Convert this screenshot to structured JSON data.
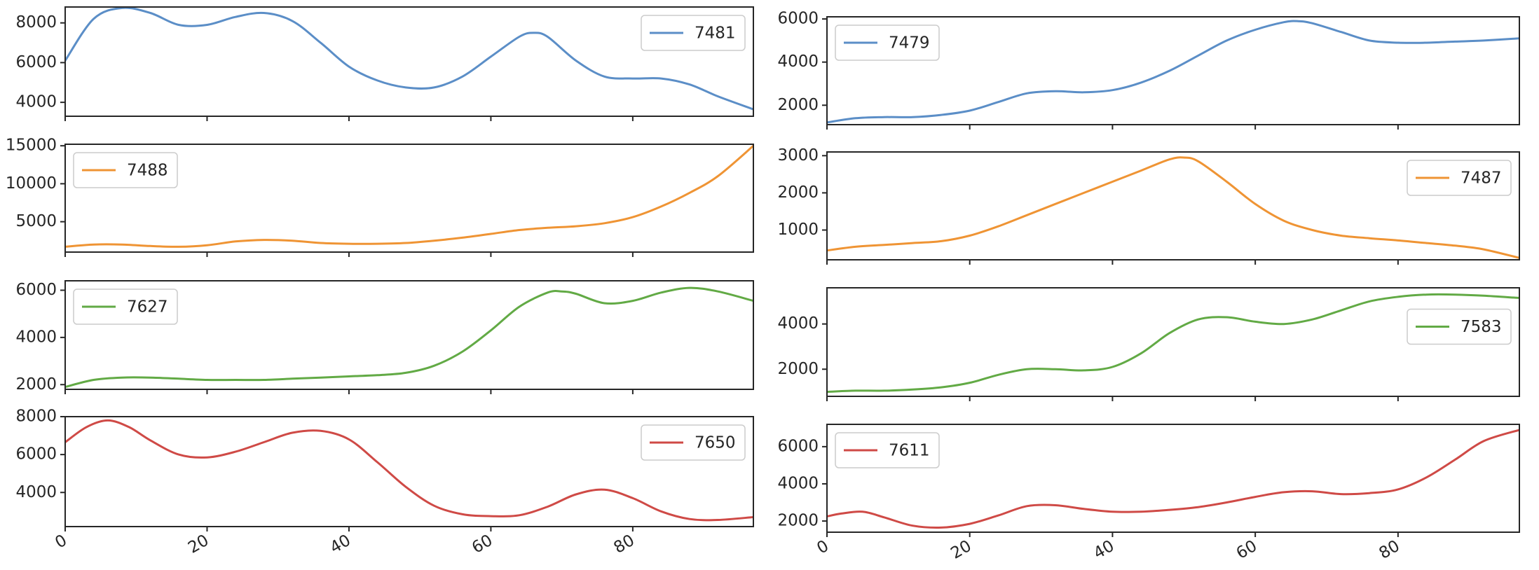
{
  "colors": {
    "blue": "#5b8ec7",
    "orange": "#ef9434",
    "green": "#62aa45",
    "red": "#cf4a46"
  },
  "chart_data": [
    {
      "type": "line",
      "name": "7481",
      "color": "blue",
      "legend": "top-right",
      "xlim": [
        0,
        97
      ],
      "ylim": [
        3300,
        8800
      ],
      "yticks": [
        4000,
        6000,
        8000
      ],
      "ytick_labels": [
        "4000",
        "6000",
        "8000"
      ],
      "x": [
        0,
        4,
        8,
        12,
        16,
        20,
        24,
        28,
        32,
        36,
        40,
        44,
        48,
        52,
        56,
        60,
        64,
        66,
        68,
        72,
        76,
        80,
        84,
        88,
        92,
        97
      ],
      "y": [
        6100,
        8200,
        8750,
        8500,
        7900,
        7900,
        8300,
        8500,
        8100,
        7000,
        5800,
        5100,
        4750,
        4750,
        5300,
        6300,
        7300,
        7500,
        7300,
        6100,
        5300,
        5200,
        5200,
        4900,
        4300,
        3650
      ]
    },
    {
      "type": "line",
      "name": "7479",
      "color": "blue",
      "legend": "top-left",
      "xlim": [
        0,
        97
      ],
      "ylim": [
        1100,
        6100
      ],
      "yticks": [
        2000,
        4000,
        6000
      ],
      "ytick_labels": [
        "2000",
        "4000",
        "6000"
      ],
      "x": [
        0,
        4,
        8,
        12,
        16,
        20,
        24,
        28,
        32,
        36,
        40,
        44,
        48,
        52,
        56,
        60,
        64,
        66,
        68,
        72,
        76,
        80,
        84,
        88,
        92,
        97
      ],
      "y": [
        1200,
        1400,
        1450,
        1450,
        1550,
        1750,
        2150,
        2550,
        2650,
        2600,
        2700,
        3050,
        3600,
        4300,
        5000,
        5500,
        5850,
        5900,
        5800,
        5400,
        5000,
        4900,
        4900,
        4950,
        5000,
        5100
      ]
    },
    {
      "type": "line",
      "name": "7488",
      "color": "orange",
      "legend": "top-left",
      "xlim": [
        0,
        97
      ],
      "ylim": [
        1000,
        15200
      ],
      "yticks": [
        5000,
        10000,
        15000
      ],
      "ytick_labels": [
        "5000",
        "10000",
        "15000"
      ],
      "x": [
        0,
        4,
        8,
        12,
        16,
        20,
        24,
        28,
        32,
        36,
        40,
        44,
        48,
        52,
        56,
        60,
        64,
        68,
        72,
        76,
        80,
        84,
        88,
        92,
        97
      ],
      "y": [
        1700,
        2000,
        2000,
        1800,
        1700,
        1900,
        2400,
        2600,
        2500,
        2200,
        2100,
        2100,
        2200,
        2500,
        2900,
        3400,
        3900,
        4200,
        4400,
        4800,
        5600,
        7000,
        8800,
        11000,
        15000
      ]
    },
    {
      "type": "line",
      "name": "7487",
      "color": "orange",
      "legend": "top-right",
      "xlim": [
        0,
        97
      ],
      "ylim": [
        200,
        3100
      ],
      "yticks": [
        1000,
        2000,
        3000
      ],
      "ytick_labels": [
        "1000",
        "2000",
        "3000"
      ],
      "x": [
        0,
        4,
        8,
        12,
        16,
        20,
        24,
        28,
        32,
        36,
        40,
        44,
        48,
        50,
        52,
        56,
        60,
        64,
        68,
        72,
        76,
        80,
        84,
        88,
        92,
        97
      ],
      "y": [
        450,
        550,
        600,
        650,
        700,
        850,
        1100,
        1400,
        1700,
        2000,
        2300,
        2600,
        2900,
        2950,
        2850,
        2300,
        1700,
        1250,
        1000,
        850,
        780,
        720,
        650,
        580,
        480,
        250
      ]
    },
    {
      "type": "line",
      "name": "7627",
      "color": "green",
      "legend": "top-left",
      "xlim": [
        0,
        97
      ],
      "ylim": [
        1800,
        6400
      ],
      "yticks": [
        2000,
        4000,
        6000
      ],
      "ytick_labels": [
        "2000",
        "4000",
        "6000"
      ],
      "x": [
        0,
        4,
        8,
        12,
        16,
        20,
        24,
        28,
        32,
        36,
        40,
        44,
        48,
        52,
        56,
        60,
        64,
        68,
        70,
        72,
        76,
        80,
        84,
        88,
        92,
        97
      ],
      "y": [
        1900,
        2200,
        2300,
        2300,
        2250,
        2200,
        2200,
        2200,
        2250,
        2300,
        2350,
        2400,
        2500,
        2800,
        3400,
        4300,
        5300,
        5900,
        5950,
        5850,
        5450,
        5550,
        5900,
        6100,
        5950,
        5550
      ]
    },
    {
      "type": "line",
      "name": "7583",
      "color": "green",
      "legend": "right",
      "xlim": [
        0,
        97
      ],
      "ylim": [
        800,
        5600
      ],
      "yticks": [
        2000,
        4000
      ],
      "ytick_labels": [
        "2000",
        "4000"
      ],
      "x": [
        0,
        4,
        8,
        12,
        16,
        20,
        24,
        28,
        32,
        36,
        40,
        44,
        48,
        52,
        56,
        60,
        64,
        68,
        72,
        76,
        80,
        84,
        88,
        92,
        97
      ],
      "y": [
        1000,
        1050,
        1050,
        1100,
        1200,
        1400,
        1750,
        2000,
        2000,
        1950,
        2100,
        2700,
        3600,
        4200,
        4300,
        4100,
        4000,
        4200,
        4600,
        5000,
        5200,
        5300,
        5300,
        5250,
        5150
      ]
    },
    {
      "type": "line",
      "name": "7650",
      "color": "red",
      "legend": "top-right",
      "xlim": [
        0,
        97
      ],
      "ylim": [
        2200,
        8000
      ],
      "yticks": [
        4000,
        6000,
        8000
      ],
      "ytick_labels": [
        "4000",
        "6000",
        "8000"
      ],
      "x": [
        0,
        3,
        6,
        9,
        12,
        16,
        20,
        24,
        28,
        32,
        36,
        40,
        44,
        48,
        52,
        56,
        60,
        64,
        68,
        72,
        76,
        80,
        84,
        88,
        92,
        97
      ],
      "y": [
        6650,
        7450,
        7800,
        7450,
        6750,
        6000,
        5850,
        6150,
        6650,
        7150,
        7250,
        6800,
        5600,
        4300,
        3300,
        2850,
        2750,
        2800,
        3250,
        3900,
        4150,
        3700,
        3000,
        2600,
        2550,
        2700
      ]
    },
    {
      "type": "line",
      "name": "7611",
      "color": "red",
      "legend": "top-left",
      "xlim": [
        0,
        97
      ],
      "ylim": [
        1400,
        7200
      ],
      "yticks": [
        2000,
        4000,
        6000
      ],
      "ytick_labels": [
        "2000",
        "4000",
        "6000"
      ],
      "x": [
        0,
        2,
        5,
        8,
        12,
        16,
        20,
        24,
        28,
        32,
        36,
        40,
        44,
        48,
        52,
        56,
        60,
        64,
        68,
        72,
        76,
        80,
        84,
        88,
        92,
        97
      ],
      "y": [
        2250,
        2400,
        2500,
        2200,
        1750,
        1650,
        1850,
        2300,
        2800,
        2850,
        2650,
        2500,
        2500,
        2600,
        2750,
        3000,
        3300,
        3550,
        3600,
        3450,
        3500,
        3700,
        4350,
        5300,
        6300,
        6900
      ]
    }
  ],
  "x_axis": {
    "ticks": [
      0,
      20,
      40,
      60,
      80
    ],
    "tick_labels": [
      "0",
      "20",
      "40",
      "60",
      "80"
    ]
  }
}
